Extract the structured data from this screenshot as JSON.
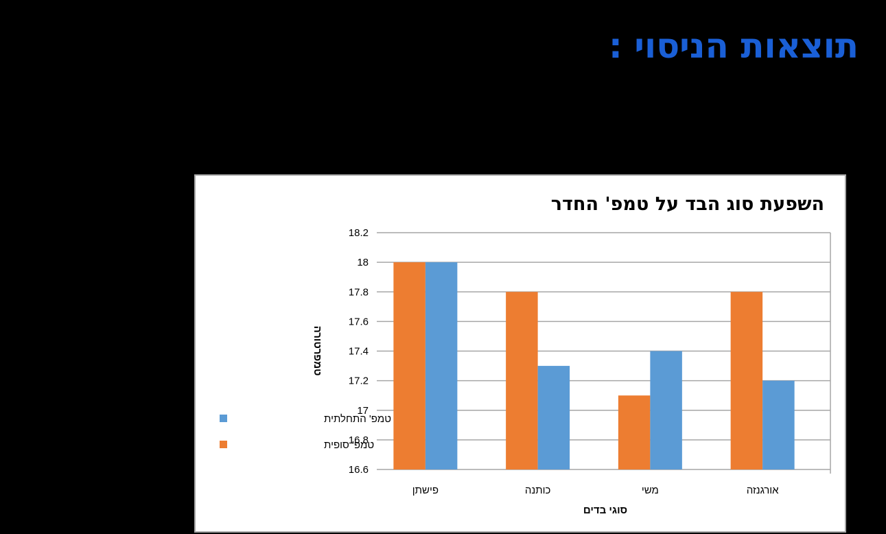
{
  "slide": {
    "title": "תוצאות הניסוי :"
  },
  "colors": {
    "initial": "#5b9bd5",
    "final": "#ed7d31",
    "title_blue": "#1a5fd6",
    "gridline": "#a6a6a6"
  },
  "chart_data": {
    "type": "bar",
    "title": "השפעת סוג הבד על טמפ' החדר",
    "xlabel": "סוגי בדים",
    "ylabel": "טמפרטורה",
    "categories": [
      "פישתן",
      "כותנה",
      "משי",
      "אורגנזה"
    ],
    "series": [
      {
        "name": "טמפ' סופית",
        "color": "#ed7d31",
        "values": [
          18,
          17.8,
          17.1,
          17.8
        ]
      },
      {
        "name": "טמפ' התחלתית",
        "color": "#5b9bd5",
        "values": [
          18,
          17.3,
          17.4,
          17.2
        ]
      }
    ],
    "ylim": [
      16.6,
      18.2
    ],
    "yticks": [
      "18.2",
      "18",
      "17.8",
      "17.6",
      "17.4",
      "17.2",
      "17",
      "16.8",
      "16.6"
    ],
    "grid": true,
    "legend_position": "left",
    "legend": [
      {
        "label": "טמפ' התחלתית",
        "color": "#5b9bd5"
      },
      {
        "label": "טמפ' סופית",
        "color": "#ed7d31"
      }
    ]
  }
}
